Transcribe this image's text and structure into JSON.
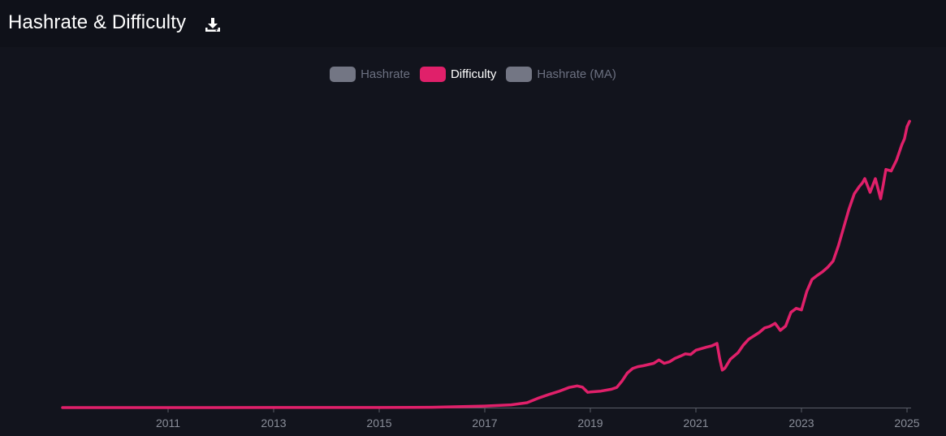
{
  "header": {
    "title": "Hashrate & Difficulty",
    "download_icon": "download-icon"
  },
  "colors": {
    "background": "#12141d",
    "header_background": "#0f1119",
    "difficulty": "#e0206a",
    "inactive_swatch": "#737684",
    "axis": "#5a5e68",
    "tick_text": "#8a8e99"
  },
  "legend": [
    {
      "label": "Hashrate",
      "active": false,
      "color": "#737684"
    },
    {
      "label": "Difficulty",
      "active": true,
      "color": "#e0206a"
    },
    {
      "label": "Hashrate (MA)",
      "active": false,
      "color": "#737684"
    }
  ],
  "chart_data": {
    "type": "line",
    "title": "Hashrate & Difficulty",
    "xlabel": "",
    "ylabel": "",
    "x_ticks": [
      2011,
      2013,
      2015,
      2017,
      2019,
      2021,
      2023,
      2025
    ],
    "x_range": [
      2009.0,
      2025.1
    ],
    "y_range": [
      0,
      100
    ],
    "y_axis_labels_visible": false,
    "grid": false,
    "legend_position": "top-center",
    "series": [
      {
        "name": "Difficulty",
        "x": [
          2009.0,
          2011.0,
          2013.0,
          2015.0,
          2016.0,
          2016.5,
          2017.0,
          2017.5,
          2017.8,
          2018.0,
          2018.2,
          2018.4,
          2018.6,
          2018.75,
          2018.85,
          2018.95,
          2019.0,
          2019.2,
          2019.4,
          2019.5,
          2019.6,
          2019.7,
          2019.8,
          2019.9,
          2020.0,
          2020.2,
          2020.3,
          2020.4,
          2020.5,
          2020.6,
          2020.7,
          2020.8,
          2020.9,
          2021.0,
          2021.2,
          2021.3,
          2021.4,
          2021.45,
          2021.5,
          2021.55,
          2021.65,
          2021.8,
          2021.9,
          2022.0,
          2022.2,
          2022.3,
          2022.4,
          2022.5,
          2022.6,
          2022.7,
          2022.8,
          2022.9,
          2023.0,
          2023.1,
          2023.2,
          2023.3,
          2023.4,
          2023.5,
          2023.6,
          2023.7,
          2023.8,
          2023.9,
          2024.0,
          2024.1,
          2024.15,
          2024.2,
          2024.3,
          2024.4,
          2024.5,
          2024.55,
          2024.6,
          2024.7,
          2024.8,
          2024.9,
          2024.95,
          2025.0,
          2025.05
        ],
        "values": [
          0.0,
          0.01,
          0.02,
          0.03,
          0.1,
          0.3,
          0.5,
          0.9,
          1.6,
          3.0,
          4.2,
          5.3,
          6.6,
          7.1,
          6.7,
          5.0,
          5.1,
          5.4,
          6.0,
          6.6,
          8.7,
          11.3,
          12.8,
          13.4,
          13.7,
          14.5,
          15.6,
          14.5,
          15.0,
          16.1,
          16.8,
          17.6,
          17.4,
          18.8,
          19.8,
          20.2,
          21.0,
          16.0,
          12.3,
          12.9,
          15.8,
          18.0,
          20.5,
          22.4,
          24.6,
          26.1,
          26.6,
          27.6,
          25.3,
          26.7,
          31.2,
          32.5,
          32.0,
          38.0,
          42.0,
          43.3,
          44.5,
          46.0,
          48.0,
          53.0,
          59.0,
          65.0,
          70.0,
          72.5,
          73.5,
          75.0,
          70.5,
          75.0,
          68.4,
          73.0,
          78.0,
          77.5,
          81.0,
          86.0,
          88.0,
          92.0,
          93.8
        ]
      }
    ]
  }
}
